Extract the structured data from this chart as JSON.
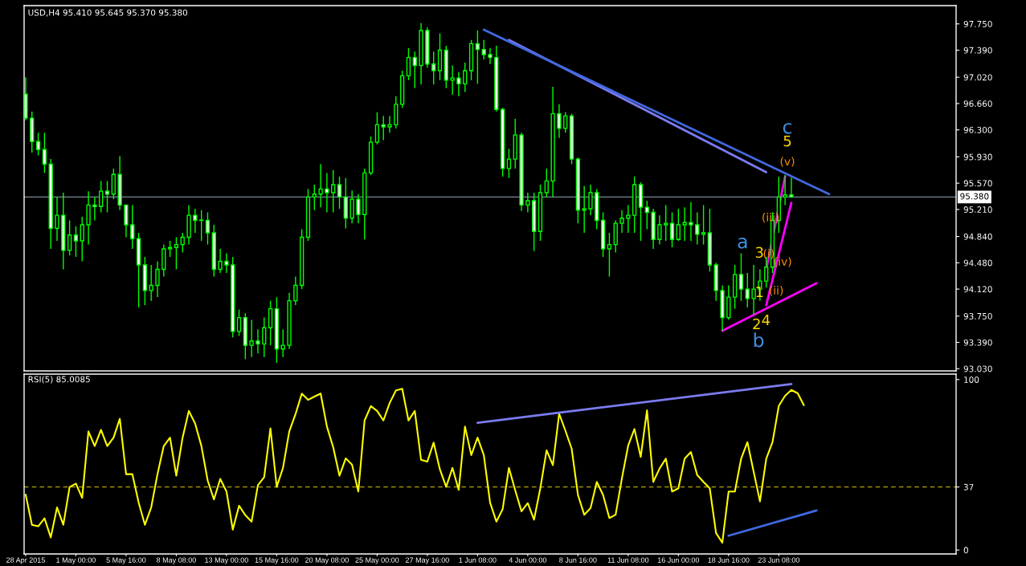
{
  "chart_data": [
    {
      "type": "candlestick",
      "title": "USD,H4 95.410 95.645 95.370 95.380",
      "color": "#00ff00",
      "categories": [
        null,
        null,
        null,
        null,
        null,
        null,
        null,
        null,
        null,
        null,
        null,
        null,
        null,
        null,
        null,
        null,
        null,
        null,
        null,
        null,
        null,
        null,
        null,
        null,
        null,
        null,
        null,
        null,
        null,
        null,
        null,
        null,
        null,
        null,
        null,
        null,
        null,
        null,
        null,
        null,
        null,
        null,
        null,
        null,
        null,
        null,
        null,
        null,
        null,
        null,
        null,
        null,
        null,
        null,
        null,
        null,
        null,
        null,
        null,
        null,
        null,
        null,
        null,
        null,
        null,
        null,
        null,
        null,
        null,
        null,
        null,
        null,
        null,
        null,
        null,
        null,
        null,
        null,
        null,
        null,
        null,
        null,
        null,
        null,
        null,
        null,
        null,
        null,
        null,
        null,
        null,
        null,
        null,
        null,
        null,
        null,
        null,
        null,
        null,
        null,
        null,
        null,
        null,
        null,
        null,
        null,
        null,
        null,
        null,
        null,
        null,
        null,
        null,
        null,
        null,
        null,
        null,
        null,
        null,
        null,
        null,
        null,
        null,
        null,
        null,
        null,
        null,
        null,
        null,
        null,
        null,
        null,
        null,
        null,
        null,
        null,
        null,
        null,
        null,
        null,
        null,
        null,
        null,
        null,
        null,
        null,
        null,
        null,
        null
      ],
      "ohlc": [
        [
          96.79,
          97.02,
          96.43,
          96.46
        ],
        [
          96.46,
          96.55,
          95.99,
          96.14
        ],
        [
          96.14,
          96.26,
          95.95,
          96.03
        ],
        [
          96.03,
          96.26,
          95.71,
          95.83
        ],
        [
          95.83,
          95.9,
          94.67,
          94.95
        ],
        [
          94.95,
          95.38,
          94.78,
          95.13
        ],
        [
          95.13,
          95.44,
          94.39,
          94.65
        ],
        [
          94.65,
          95.06,
          94.58,
          94.86
        ],
        [
          94.86,
          94.98,
          94.56,
          94.78
        ],
        [
          94.78,
          95.11,
          94.5,
          95.0
        ],
        [
          95.0,
          95.46,
          94.73,
          95.27
        ],
        [
          95.27,
          95.38,
          95.06,
          95.25
        ],
        [
          95.25,
          95.6,
          95.17,
          95.46
        ],
        [
          95.46,
          95.6,
          95.17,
          95.42
        ],
        [
          95.42,
          95.77,
          95.35,
          95.69
        ],
        [
          95.69,
          95.94,
          95.2,
          95.27
        ],
        [
          95.27,
          95.27,
          94.83,
          95.0
        ],
        [
          95.0,
          95.27,
          94.67,
          94.81
        ],
        [
          94.81,
          94.89,
          93.87,
          94.45
        ],
        [
          94.45,
          94.56,
          93.9,
          94.1
        ],
        [
          94.1,
          94.45,
          93.96,
          94.17
        ],
        [
          94.17,
          94.5,
          94.01,
          94.39
        ],
        [
          94.39,
          94.73,
          94.29,
          94.67
        ],
        [
          94.67,
          94.78,
          94.56,
          94.69
        ],
        [
          94.69,
          94.83,
          94.39,
          94.73
        ],
        [
          94.73,
          94.89,
          94.62,
          94.83
        ],
        [
          94.83,
          95.27,
          94.73,
          95.13
        ],
        [
          95.13,
          95.22,
          94.89,
          95.06
        ],
        [
          95.06,
          95.2,
          94.78,
          95.06
        ],
        [
          95.06,
          95.17,
          94.73,
          94.89
        ],
        [
          94.89,
          95.0,
          94.29,
          94.39
        ],
        [
          94.39,
          94.67,
          94.34,
          94.5
        ],
        [
          94.5,
          94.61,
          94.34,
          94.45
        ],
        [
          94.45,
          94.56,
          93.46,
          93.54
        ],
        [
          93.54,
          93.84,
          93.48,
          93.73
        ],
        [
          93.73,
          93.79,
          93.16,
          93.35
        ],
        [
          93.35,
          93.7,
          93.19,
          93.41
        ],
        [
          93.41,
          93.57,
          93.24,
          93.37
        ],
        [
          93.37,
          93.73,
          93.19,
          93.59
        ],
        [
          93.59,
          93.96,
          93.35,
          93.85
        ],
        [
          93.85,
          94.01,
          93.11,
          93.3
        ],
        [
          93.3,
          93.57,
          93.19,
          93.35
        ],
        [
          93.35,
          94.07,
          93.3,
          93.96
        ],
        [
          93.96,
          94.29,
          93.9,
          94.17
        ],
        [
          94.17,
          94.94,
          94.12,
          94.83
        ],
        [
          94.83,
          95.49,
          94.78,
          95.38
        ],
        [
          95.38,
          95.55,
          95.2,
          95.42
        ],
        [
          95.42,
          95.83,
          95.24,
          95.49
        ],
        [
          95.49,
          95.71,
          95.17,
          95.44
        ],
        [
          95.44,
          95.75,
          95.17,
          95.55
        ],
        [
          95.55,
          95.66,
          95.22,
          95.38
        ],
        [
          95.38,
          95.64,
          94.95,
          95.09
        ],
        [
          95.09,
          95.47,
          95.02,
          95.35
        ],
        [
          95.35,
          95.42,
          95.02,
          95.14
        ],
        [
          95.14,
          95.77,
          94.8,
          95.71
        ],
        [
          95.71,
          96.21,
          95.68,
          96.13
        ],
        [
          96.13,
          96.54,
          96.1,
          96.37
        ],
        [
          96.37,
          96.49,
          96.16,
          96.34
        ],
        [
          96.34,
          96.49,
          96.26,
          96.37
        ],
        [
          96.37,
          96.76,
          96.32,
          96.65
        ],
        [
          96.65,
          97.11,
          96.6,
          97.04
        ],
        [
          97.04,
          97.42,
          96.98,
          97.29
        ],
        [
          97.29,
          97.37,
          96.87,
          97.18
        ],
        [
          97.18,
          97.76,
          96.92,
          97.66
        ],
        [
          97.66,
          97.7,
          97.15,
          97.2
        ],
        [
          97.2,
          97.37,
          96.92,
          97.11
        ],
        [
          97.11,
          97.62,
          96.98,
          97.39
        ],
        [
          97.39,
          97.45,
          96.87,
          96.98
        ],
        [
          96.98,
          97.18,
          96.78,
          97.01
        ],
        [
          97.01,
          97.09,
          96.76,
          96.93
        ],
        [
          96.93,
          97.22,
          96.82,
          97.11
        ],
        [
          97.11,
          97.53,
          96.98,
          97.48
        ],
        [
          97.48,
          97.66,
          96.93,
          97.4
        ],
        [
          97.4,
          97.53,
          97.26,
          97.33
        ],
        [
          97.33,
          97.42,
          97.2,
          97.29
        ],
        [
          97.29,
          97.45,
          96.55,
          96.58
        ],
        [
          96.58,
          96.6,
          95.66,
          95.77
        ],
        [
          95.77,
          96.04,
          95.64,
          95.9
        ],
        [
          95.9,
          96.45,
          95.77,
          96.23
        ],
        [
          96.23,
          96.26,
          95.19,
          95.27
        ],
        [
          95.27,
          95.44,
          95.17,
          95.33
        ],
        [
          95.33,
          95.44,
          94.64,
          94.91
        ],
        [
          94.91,
          95.55,
          94.78,
          95.44
        ],
        [
          95.44,
          95.77,
          95.38,
          95.6
        ],
        [
          95.6,
          96.89,
          95.38,
          96.52
        ],
        [
          96.52,
          96.65,
          96.19,
          96.32
        ],
        [
          96.32,
          96.54,
          96.26,
          96.49
        ],
        [
          96.49,
          96.52,
          95.83,
          95.9
        ],
        [
          95.9,
          95.92,
          95.02,
          95.2
        ],
        [
          95.2,
          95.53,
          94.89,
          95.22
        ],
        [
          95.22,
          95.55,
          95.13,
          95.44
        ],
        [
          95.44,
          95.49,
          94.94,
          95.06
        ],
        [
          95.06,
          95.17,
          94.56,
          94.67
        ],
        [
          94.67,
          94.89,
          94.29,
          94.73
        ],
        [
          94.73,
          95.06,
          94.62,
          95.02
        ],
        [
          95.02,
          95.2,
          94.89,
          95.09
        ],
        [
          95.09,
          95.27,
          94.89,
          95.13
        ],
        [
          95.13,
          95.66,
          94.89,
          95.55
        ],
        [
          95.55,
          95.58,
          94.78,
          95.24
        ],
        [
          95.24,
          95.33,
          94.94,
          95.17
        ],
        [
          95.17,
          95.22,
          94.67,
          94.8
        ],
        [
          94.8,
          95.13,
          94.73,
          95.0
        ],
        [
          95.0,
          95.27,
          94.78,
          95.02
        ],
        [
          95.02,
          95.17,
          94.69,
          94.8
        ],
        [
          94.8,
          95.22,
          94.78,
          95.0
        ],
        [
          95.0,
          95.24,
          94.78,
          95.03
        ],
        [
          95.03,
          95.31,
          94.78,
          95.0
        ],
        [
          95.0,
          95.17,
          94.73,
          94.87
        ],
        [
          94.87,
          95.27,
          94.73,
          94.89
        ],
        [
          94.89,
          95.22,
          94.36,
          94.45
        ],
        [
          94.45,
          94.48,
          93.96,
          94.1
        ],
        [
          94.1,
          94.17,
          93.55,
          93.73
        ],
        [
          93.73,
          94.17,
          93.7,
          94.01
        ],
        [
          94.01,
          94.45,
          93.85,
          94.32
        ],
        [
          94.32,
          94.61,
          93.96,
          94.12
        ],
        [
          94.12,
          94.34,
          93.87,
          93.99
        ],
        [
          93.99,
          94.45,
          93.77,
          94.12
        ],
        [
          94.12,
          94.39,
          93.96,
          94.23
        ],
        [
          94.23,
          94.56,
          94.14,
          94.42
        ],
        [
          94.42,
          95.17,
          94.34,
          95.06
        ],
        [
          95.06,
          95.66,
          94.89,
          95.38
        ],
        [
          95.38,
          95.68,
          95.27,
          95.41
        ],
        [
          95.41,
          95.645,
          95.37,
          95.38
        ],
        null,
        null,
        null,
        null,
        null,
        null,
        null,
        null,
        null,
        null,
        null,
        null,
        null,
        null,
        null,
        null,
        null,
        null,
        null,
        null,
        null,
        null,
        null,
        null,
        null,
        null
      ],
      "series": [
        {
          "type": "line",
          "color": "#7b7bf0",
          "values": [
            null,
            null,
            null,
            null,
            null,
            null,
            null,
            null,
            null,
            null,
            null,
            null,
            null,
            null,
            null,
            null,
            null,
            null,
            null,
            null,
            null,
            null,
            null,
            null,
            null,
            null,
            null,
            null,
            null,
            null,
            null,
            null,
            null,
            null,
            null,
            null,
            null,
            null,
            null,
            null,
            null,
            null,
            null,
            null,
            null,
            null,
            null,
            null,
            null,
            null,
            null,
            null,
            null,
            null,
            null,
            null,
            null,
            null,
            null,
            null,
            null,
            null,
            null,
            null,
            null,
            null,
            null,
            null,
            null,
            null,
            null,
            null,
            null,
            null,
            null,
            null,
            null,
            97.53,
            null,
            null,
            null,
            null,
            null,
            null,
            null,
            null,
            null,
            null,
            null,
            null,
            null,
            null,
            null,
            null,
            null,
            null,
            null,
            null,
            null,
            null,
            null,
            null,
            null,
            null,
            null,
            null,
            null,
            null,
            null,
            null,
            null,
            null,
            null,
            null,
            null,
            null,
            null,
            null,
            95.72,
            null,
            null,
            null,
            null,
            null,
            null,
            null,
            null,
            null,
            null,
            null,
            null,
            null,
            null,
            null,
            null,
            null,
            null,
            null,
            null,
            null,
            null,
            null,
            null,
            null,
            null,
            null,
            null,
            null,
            null
          ]
        },
        {
          "type": "line",
          "color": "#4169e1",
          "values": [
            null,
            null,
            null,
            null,
            null,
            null,
            null,
            null,
            null,
            null,
            null,
            null,
            null,
            null,
            null,
            null,
            null,
            null,
            null,
            null,
            null,
            null,
            null,
            null,
            null,
            null,
            null,
            null,
            null,
            null,
            null,
            null,
            null,
            null,
            null,
            null,
            null,
            null,
            null,
            null,
            null,
            null,
            null,
            null,
            null,
            null,
            null,
            null,
            null,
            null,
            null,
            null,
            null,
            null,
            null,
            null,
            null,
            null,
            null,
            null,
            null,
            null,
            null,
            null,
            null,
            null,
            null,
            null,
            null,
            null,
            null,
            null,
            null,
            97.67,
            null,
            null,
            null,
            null,
            null,
            null,
            null,
            null,
            null,
            null,
            null,
            null,
            null,
            null,
            null,
            null,
            null,
            null,
            null,
            null,
            null,
            null,
            null,
            null,
            null,
            null,
            null,
            null,
            null,
            null,
            null,
            null,
            null,
            null,
            null,
            null,
            null,
            null,
            null,
            null,
            null,
            null,
            null,
            null,
            null,
            null,
            null,
            null,
            null,
            null,
            null,
            null,
            null,
            null,
            95.42,
            null,
            null,
            null,
            null,
            null,
            null,
            null,
            null,
            null,
            null,
            null,
            null,
            null,
            null,
            null,
            null,
            null,
            null,
            null,
            null
          ]
        },
        {
          "type": "line",
          "color": "#ff00ff",
          "values": [
            null,
            null,
            null,
            null,
            null,
            null,
            null,
            null,
            null,
            null,
            null,
            null,
            null,
            null,
            null,
            null,
            null,
            null,
            null,
            null,
            null,
            null,
            null,
            null,
            null,
            null,
            null,
            null,
            null,
            null,
            null,
            null,
            null,
            null,
            null,
            null,
            null,
            null,
            null,
            null,
            null,
            null,
            null,
            null,
            null,
            null,
            null,
            null,
            null,
            null,
            null,
            null,
            null,
            null,
            null,
            null,
            null,
            null,
            null,
            null,
            null,
            null,
            null,
            null,
            null,
            null,
            null,
            null,
            null,
            null,
            null,
            null,
            null,
            null,
            null,
            null,
            null,
            null,
            null,
            null,
            null,
            null,
            null,
            null,
            null,
            null,
            null,
            null,
            null,
            null,
            null,
            null,
            null,
            null,
            null,
            null,
            null,
            null,
            null,
            null,
            null,
            null,
            null,
            null,
            null,
            null,
            null,
            null,
            null,
            null,
            null,
            93.55,
            null,
            null,
            null,
            null,
            null,
            null,
            null,
            null,
            null,
            null,
            null,
            null,
            null,
            null,
            94.2,
            null,
            null,
            null,
            null,
            null,
            null,
            null,
            null,
            null,
            null,
            null,
            null,
            null,
            null,
            null,
            null,
            null,
            null,
            null,
            null,
            null,
            null
          ]
        },
        {
          "type": "line",
          "color": "#ff00ff",
          "values": [
            null,
            null,
            null,
            null,
            null,
            null,
            null,
            null,
            null,
            null,
            null,
            null,
            null,
            null,
            null,
            null,
            null,
            null,
            null,
            null,
            null,
            null,
            null,
            null,
            null,
            null,
            null,
            null,
            null,
            null,
            null,
            null,
            null,
            null,
            null,
            null,
            null,
            null,
            null,
            null,
            null,
            null,
            null,
            null,
            null,
            null,
            null,
            null,
            null,
            null,
            null,
            null,
            null,
            null,
            null,
            null,
            null,
            null,
            null,
            null,
            null,
            null,
            null,
            null,
            null,
            null,
            null,
            null,
            null,
            null,
            null,
            null,
            null,
            null,
            null,
            null,
            null,
            null,
            null,
            null,
            null,
            null,
            null,
            null,
            null,
            null,
            null,
            null,
            null,
            null,
            null,
            null,
            null,
            null,
            null,
            null,
            null,
            null,
            null,
            null,
            null,
            null,
            null,
            null,
            null,
            null,
            null,
            null,
            null,
            null,
            null,
            null,
            null,
            null,
            null,
            null,
            null,
            null,
            94.39,
            null,
            null,
            95.66,
            null,
            null,
            null,
            null,
            null,
            null,
            null,
            null,
            null,
            null,
            null,
            null,
            null,
            null,
            null,
            null,
            null,
            null,
            null,
            null,
            null,
            null,
            null,
            null,
            null,
            null,
            null
          ]
        },
        {
          "type": "line",
          "color": "#ff00ff",
          "values": [
            null,
            null,
            null,
            null,
            null,
            null,
            null,
            null,
            null,
            null,
            null,
            null,
            null,
            null,
            null,
            null,
            null,
            null,
            null,
            null,
            null,
            null,
            null,
            null,
            null,
            null,
            null,
            null,
            null,
            null,
            null,
            null,
            null,
            null,
            null,
            null,
            null,
            null,
            null,
            null,
            null,
            null,
            null,
            null,
            null,
            null,
            null,
            null,
            null,
            null,
            null,
            null,
            null,
            null,
            null,
            null,
            null,
            null,
            null,
            null,
            null,
            null,
            null,
            null,
            null,
            null,
            null,
            null,
            null,
            null,
            null,
            null,
            null,
            null,
            null,
            null,
            null,
            null,
            null,
            null,
            null,
            null,
            null,
            null,
            null,
            null,
            null,
            null,
            null,
            null,
            null,
            null,
            null,
            null,
            null,
            null,
            null,
            null,
            null,
            null,
            null,
            null,
            null,
            null,
            null,
            null,
            null,
            null,
            null,
            null,
            null,
            null,
            null,
            null,
            null,
            null,
            null,
            null,
            93.9,
            null,
            null,
            null,
            95.3,
            null,
            null,
            null,
            null,
            null,
            null,
            null,
            null,
            null,
            null,
            null,
            null,
            null,
            null,
            null,
            null,
            null,
            null,
            null,
            null,
            null,
            null,
            null,
            null,
            null,
            null
          ]
        }
      ],
      "ylim": [
        93.0,
        98.0
      ],
      "yticks": [
        {
          "value": 97.75,
          "label": "97.750"
        },
        {
          "value": 97.39,
          "label": "97.390"
        },
        {
          "value": 97.02,
          "label": "97.020"
        },
        {
          "value": 96.66,
          "label": "96.660"
        },
        {
          "value": 96.3,
          "label": "96.300"
        },
        {
          "value": 95.93,
          "label": "95.930"
        },
        {
          "value": 95.57,
          "label": "95.570"
        },
        {
          "value": 95.21,
          "label": "95.210"
        },
        {
          "value": 94.84,
          "label": "94.840"
        },
        {
          "value": 94.48,
          "label": "94.480"
        },
        {
          "value": 94.12,
          "label": "94.120"
        },
        {
          "value": 93.75,
          "label": "93.750"
        },
        {
          "value": 93.39,
          "label": "93.390"
        },
        {
          "value": 93.03,
          "label": "93.030"
        }
      ],
      "tick_labels": "y",
      "ref_lines": [
        {
          "axis": "y",
          "value": 95.38,
          "label": "95.380",
          "color": "#778899"
        }
      ],
      "annotations": [
        "c",
        "5",
        "(v)",
        "(iii)",
        "3",
        "(i)",
        "(iv)",
        "a",
        "1",
        "(ii)",
        "2",
        "4",
        "b"
      ]
    },
    {
      "type": "line",
      "title": "RSI(5) 85.0085",
      "categories": [
        "28 Apr 2015",
        null,
        null,
        null,
        null,
        null,
        null,
        null,
        "1 May 00:00",
        null,
        null,
        null,
        null,
        null,
        null,
        null,
        "5 May 16:00",
        null,
        null,
        null,
        null,
        null,
        null,
        null,
        "8 May 08:00",
        null,
        null,
        null,
        null,
        null,
        null,
        null,
        "13 May 00:00",
        null,
        null,
        null,
        null,
        null,
        null,
        null,
        "15 May 16:00",
        null,
        null,
        null,
        null,
        null,
        null,
        null,
        "20 May 08:00",
        null,
        null,
        null,
        null,
        null,
        null,
        null,
        "25 May 00:00",
        null,
        null,
        null,
        null,
        null,
        null,
        null,
        "27 May 16:00",
        null,
        null,
        null,
        null,
        null,
        null,
        null,
        "1 Jun 08:00",
        null,
        null,
        null,
        null,
        null,
        null,
        null,
        "4 Jun 00:00",
        null,
        null,
        null,
        null,
        null,
        null,
        null,
        "8 Jun 16:00",
        null,
        null,
        null,
        null,
        null,
        null,
        null,
        "11 Jun 08:00",
        null,
        null,
        null,
        null,
        null,
        null,
        null,
        "16 Jun 00:00",
        null,
        null,
        null,
        null,
        null,
        null,
        null,
        "18 Jun 16:00",
        null,
        null,
        null,
        null,
        null,
        null,
        null,
        "23 Jun 08:00",
        null,
        null,
        null,
        null,
        null,
        null,
        null,
        null,
        null,
        null,
        null,
        null,
        null,
        null,
        null,
        null,
        null,
        null,
        null,
        null,
        null,
        null,
        null,
        null,
        null,
        null,
        null,
        null
      ],
      "series": [
        {
          "color": "#ffff00",
          "values": [
            32.5,
            14.8,
            13.9,
            18.6,
            7.4,
            25,
            14.8,
            37,
            39,
            30.6,
            69.6,
            61,
            70.5,
            61,
            65.9,
            77,
            44.5,
            44.5,
            27.8,
            14.8,
            25,
            44.5,
            61,
            65.9,
            43.6,
            65.9,
            81.6,
            74.2,
            61,
            40.8,
            29.7,
            41.7,
            34.3,
            12,
            26,
            20.4,
            16.7,
            38,
            42.7,
            71.4,
            37.1,
            48.2,
            69.6,
            79.8,
            91.8,
            88.1,
            90,
            91.8,
            72.4,
            60.3,
            43.6,
            53.8,
            50.1,
            34.3,
            76,
            84.4,
            81.6,
            76,
            86.3,
            93.7,
            94.6,
            76,
            81.6,
            52.9,
            51.9,
            63,
            47.3,
            37.1,
            48.2,
            35.3,
            72.4,
            55.7,
            66,
            55.7,
            27.8,
            16.7,
            24,
            48.2,
            35,
            22.7,
            27.5,
            17.8,
            36.2,
            58.5,
            49.8,
            80,
            70,
            59.4,
            32.3,
            20.7,
            24.6,
            40,
            32.3,
            18.8,
            20.7,
            42,
            61.3,
            71,
            54.6,
            82,
            40,
            47.8,
            53.6,
            34.3,
            36.2,
            53.6,
            57.5,
            44,
            40,
            36.2,
            10,
            4.3,
            34.3,
            34.3,
            53.6,
            63.3,
            45.9,
            28.5,
            53.6,
            63.3,
            84.6,
            90.5,
            93.9,
            92,
            85,
            null,
            null,
            null,
            null,
            null,
            null,
            null,
            null,
            null,
            null,
            null,
            null,
            null,
            null,
            null,
            null,
            null,
            null,
            null,
            null,
            null,
            null,
            null,
            null
          ]
        },
        {
          "type": "line",
          "color": "#7b7bf0",
          "values": [
            null,
            null,
            null,
            null,
            null,
            null,
            null,
            null,
            null,
            null,
            null,
            null,
            null,
            null,
            null,
            null,
            null,
            null,
            null,
            null,
            null,
            null,
            null,
            null,
            null,
            null,
            null,
            null,
            null,
            null,
            null,
            null,
            null,
            null,
            null,
            null,
            null,
            null,
            null,
            null,
            null,
            null,
            null,
            null,
            null,
            null,
            null,
            null,
            null,
            null,
            null,
            null,
            null,
            null,
            null,
            null,
            null,
            null,
            null,
            null,
            null,
            null,
            null,
            null,
            null,
            null,
            null,
            null,
            null,
            null,
            null,
            null,
            74.7,
            null,
            null,
            null,
            null,
            null,
            null,
            null,
            null,
            null,
            null,
            null,
            null,
            null,
            null,
            null,
            null,
            null,
            null,
            null,
            null,
            null,
            null,
            null,
            null,
            null,
            null,
            null,
            null,
            null,
            null,
            null,
            null,
            null,
            null,
            null,
            null,
            null,
            null,
            null,
            null,
            null,
            null,
            null,
            null,
            null,
            null,
            null,
            null,
            null,
            97.4,
            null,
            null,
            null,
            null,
            null,
            null,
            null,
            null,
            null,
            null,
            null,
            null,
            null,
            null,
            null,
            null,
            null,
            null,
            null,
            null,
            null,
            null,
            null,
            null,
            null,
            null
          ]
        },
        {
          "type": "line",
          "color": "#4169e1",
          "values": [
            null,
            null,
            null,
            null,
            null,
            null,
            null,
            null,
            null,
            null,
            null,
            null,
            null,
            null,
            null,
            null,
            null,
            null,
            null,
            null,
            null,
            null,
            null,
            null,
            null,
            null,
            null,
            null,
            null,
            null,
            null,
            null,
            null,
            null,
            null,
            null,
            null,
            null,
            null,
            null,
            null,
            null,
            null,
            null,
            null,
            null,
            null,
            null,
            null,
            null,
            null,
            null,
            null,
            null,
            null,
            null,
            null,
            null,
            null,
            null,
            null,
            null,
            null,
            null,
            null,
            null,
            null,
            null,
            null,
            null,
            null,
            null,
            null,
            null,
            null,
            null,
            null,
            null,
            null,
            null,
            null,
            null,
            null,
            null,
            null,
            null,
            null,
            null,
            null,
            null,
            null,
            null,
            null,
            null,
            null,
            null,
            null,
            null,
            null,
            null,
            null,
            null,
            null,
            null,
            null,
            null,
            null,
            null,
            null,
            null,
            null,
            null,
            8.4,
            null,
            null,
            null,
            null,
            null,
            null,
            null,
            null,
            null,
            null,
            null,
            null,
            null,
            23.2,
            null,
            null,
            null,
            null,
            null,
            null,
            null,
            null,
            null,
            null,
            null,
            null,
            null,
            null,
            null,
            null,
            null,
            null,
            null,
            null,
            null,
            null
          ]
        }
      ],
      "ylim": [
        -2.3,
        103.2
      ],
      "yticks": [
        0,
        37,
        100
      ],
      "ref_lines": [
        {
          "axis": "y",
          "value": 37,
          "color": "#a09000",
          "line_style": "dashed"
        }
      ]
    }
  ]
}
